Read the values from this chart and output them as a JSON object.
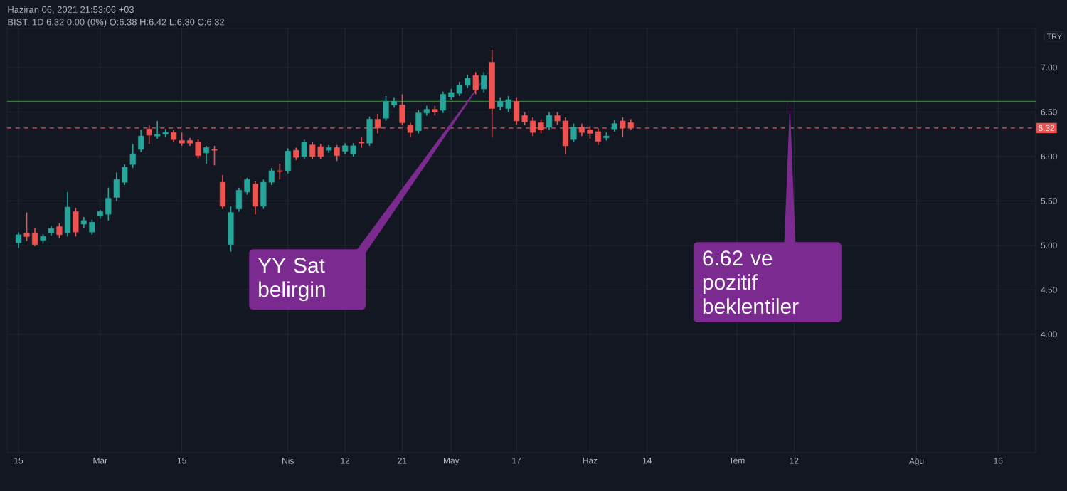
{
  "chart_data": {
    "type": "candlestick",
    "title": "BIST, 1D 6.32 0.00 (0%) O:6.38 H:6.42 L:6.30 C:6.32",
    "subtitle": "Haziran 06, 2021 21:53:06 +03",
    "ylabel": "TRY",
    "annotations": [
      "YY Sat belirgin",
      "6.62 ve pozitif beklentiler"
    ],
    "categories": [
      "15",
      null,
      null,
      null,
      null,
      null,
      null,
      null,
      null,
      null,
      "Mar",
      null,
      null,
      null,
      null,
      null,
      null,
      null,
      null,
      null,
      "15",
      null,
      null,
      null,
      null,
      null,
      null,
      null,
      null,
      null,
      null,
      null,
      null,
      "Nis",
      null,
      null,
      null,
      null,
      null,
      null,
      "12",
      null,
      null,
      null,
      null,
      null,
      null,
      "21",
      null,
      null,
      null,
      null,
      null,
      "May",
      null,
      null,
      null,
      null,
      null,
      null,
      null,
      "17",
      null,
      null,
      null,
      null,
      null,
      null,
      null,
      null,
      "Haz",
      null,
      null,
      null,
      null,
      null,
      null,
      "14",
      null,
      null,
      null,
      null,
      null,
      null,
      null,
      null,
      null,
      null,
      "Tem",
      null,
      null,
      null,
      null,
      null,
      null,
      "12",
      null,
      null,
      null,
      null,
      null,
      null,
      null,
      null,
      null,
      null,
      null,
      null,
      null,
      null,
      "Ağu",
      null,
      null,
      null,
      null,
      null,
      null,
      null,
      null,
      null,
      "16",
      null,
      null,
      null,
      null
    ],
    "ohlc": [
      [
        5.03,
        5.15,
        4.97,
        5.12
      ],
      [
        5.14,
        5.37,
        5.05,
        5.1
      ],
      [
        5.14,
        5.2,
        4.99,
        5.01
      ],
      [
        5.06,
        5.13,
        5.02,
        5.1
      ],
      [
        5.14,
        5.22,
        5.11,
        5.19
      ],
      [
        5.21,
        5.25,
        5.08,
        5.12
      ],
      [
        5.14,
        5.6,
        5.1,
        5.43
      ],
      [
        5.38,
        5.42,
        5.1,
        5.15
      ],
      [
        5.24,
        5.32,
        5.2,
        5.28
      ],
      [
        5.15,
        5.29,
        5.12,
        5.26
      ],
      [
        5.33,
        5.4,
        5.3,
        5.38
      ],
      [
        5.35,
        5.65,
        5.28,
        5.53
      ],
      [
        5.54,
        5.82,
        5.5,
        5.74
      ],
      [
        5.71,
        5.91,
        5.68,
        5.88
      ],
      [
        5.91,
        6.14,
        5.87,
        6.03
      ],
      [
        6.08,
        6.3,
        6.05,
        6.23
      ],
      [
        6.31,
        6.35,
        6.14,
        6.24
      ],
      [
        6.23,
        6.4,
        6.2,
        6.25
      ],
      [
        6.25,
        6.31,
        6.22,
        6.27
      ],
      [
        6.27,
        6.3,
        6.16,
        6.19
      ],
      [
        6.18,
        6.27,
        6.12,
        6.15
      ],
      [
        6.18,
        6.21,
        6.12,
        6.15
      ],
      [
        6.16,
        6.19,
        5.98,
        6.01
      ],
      [
        6.04,
        6.12,
        5.92,
        6.1
      ],
      [
        6.08,
        6.12,
        5.9,
        6.07
      ],
      [
        5.71,
        5.79,
        5.41,
        5.44
      ],
      [
        5.01,
        5.44,
        4.93,
        5.37
      ],
      [
        5.41,
        5.65,
        5.38,
        5.62
      ],
      [
        5.6,
        5.76,
        5.57,
        5.74
      ],
      [
        5.69,
        5.72,
        5.35,
        5.44
      ],
      [
        5.44,
        5.74,
        5.41,
        5.71
      ],
      [
        5.71,
        5.87,
        5.68,
        5.84
      ],
      [
        5.84,
        5.92,
        5.74,
        5.83
      ],
      [
        5.84,
        6.09,
        5.81,
        6.06
      ],
      [
        6.07,
        6.1,
        5.96,
        5.99
      ],
      [
        6.0,
        6.19,
        5.97,
        6.16
      ],
      [
        6.13,
        6.16,
        5.97,
        6.0
      ],
      [
        6.11,
        6.14,
        5.97,
        6.0
      ],
      [
        6.07,
        6.13,
        6.04,
        6.1
      ],
      [
        6.1,
        6.13,
        5.95,
        6.01
      ],
      [
        6.06,
        6.15,
        6.03,
        6.12
      ],
      [
        6.03,
        6.15,
        6.0,
        6.12
      ],
      [
        6.16,
        6.22,
        6.1,
        6.15
      ],
      [
        6.15,
        6.45,
        6.12,
        6.42
      ],
      [
        6.42,
        6.48,
        6.26,
        6.32
      ],
      [
        6.43,
        6.68,
        6.4,
        6.62
      ],
      [
        6.58,
        6.66,
        6.55,
        6.62
      ],
      [
        6.58,
        6.7,
        6.35,
        6.38
      ],
      [
        6.35,
        6.38,
        6.22,
        6.27
      ],
      [
        6.29,
        6.52,
        6.26,
        6.49
      ],
      [
        6.49,
        6.57,
        6.46,
        6.53
      ],
      [
        6.53,
        6.57,
        6.46,
        6.5
      ],
      [
        6.52,
        6.73,
        6.49,
        6.7
      ],
      [
        6.67,
        6.76,
        6.64,
        6.72
      ],
      [
        6.71,
        6.84,
        6.68,
        6.8
      ],
      [
        6.8,
        6.92,
        6.77,
        6.88
      ],
      [
        6.91,
        6.95,
        6.7,
        6.75
      ],
      [
        6.76,
        6.95,
        6.72,
        6.91
      ],
      [
        7.06,
        7.2,
        6.22,
        6.54
      ],
      [
        6.56,
        6.66,
        6.52,
        6.62
      ],
      [
        6.54,
        6.68,
        6.5,
        6.64
      ],
      [
        6.62,
        6.66,
        6.36,
        6.4
      ],
      [
        6.46,
        6.5,
        6.35,
        6.39
      ],
      [
        6.4,
        6.44,
        6.23,
        6.27
      ],
      [
        6.38,
        6.42,
        6.26,
        6.3
      ],
      [
        6.33,
        6.5,
        6.3,
        6.46
      ],
      [
        6.46,
        6.5,
        6.36,
        6.4
      ],
      [
        6.4,
        6.44,
        6.03,
        6.12
      ],
      [
        6.19,
        6.37,
        6.16,
        6.33
      ],
      [
        6.33,
        6.37,
        6.23,
        6.27
      ],
      [
        6.3,
        6.34,
        6.2,
        6.26
      ],
      [
        6.28,
        6.32,
        6.13,
        6.17
      ],
      [
        6.21,
        6.27,
        6.18,
        6.23
      ],
      [
        6.31,
        6.41,
        6.28,
        6.37
      ],
      [
        6.4,
        6.44,
        6.22,
        6.32
      ],
      [
        6.38,
        6.42,
        6.3,
        6.32
      ],
      null,
      null,
      null,
      null,
      null,
      null,
      null,
      null,
      null,
      null,
      null,
      null,
      null,
      null,
      null,
      null,
      null,
      null,
      null,
      null,
      null,
      null,
      null,
      null,
      null,
      null,
      null,
      null,
      null,
      null,
      null,
      null,
      null,
      null,
      null,
      null,
      null,
      null,
      null,
      null,
      null,
      null,
      null,
      null,
      null,
      null,
      null,
      null,
      null
    ],
    "ylim": [
      2.67,
      7.44
    ],
    "yticks": [
      {
        "value": 4,
        "label": "4.00"
      },
      {
        "value": 4.5,
        "label": "4.50"
      },
      {
        "value": 5,
        "label": "5.00"
      },
      {
        "value": 5.5,
        "label": "5.50"
      },
      {
        "value": 6,
        "label": "6.00"
      },
      {
        "value": 6.5,
        "label": "6.50"
      },
      {
        "value": 7,
        "label": "7.00"
      }
    ],
    "grid": true,
    "ref_lines": [
      {
        "axis": "y",
        "value": 6.32,
        "label": "6.32",
        "color": "#ef5350",
        "line_style": "dashed"
      },
      {
        "axis": "y",
        "value": 6.62,
        "color": "#2e7d32"
      }
    ]
  }
}
